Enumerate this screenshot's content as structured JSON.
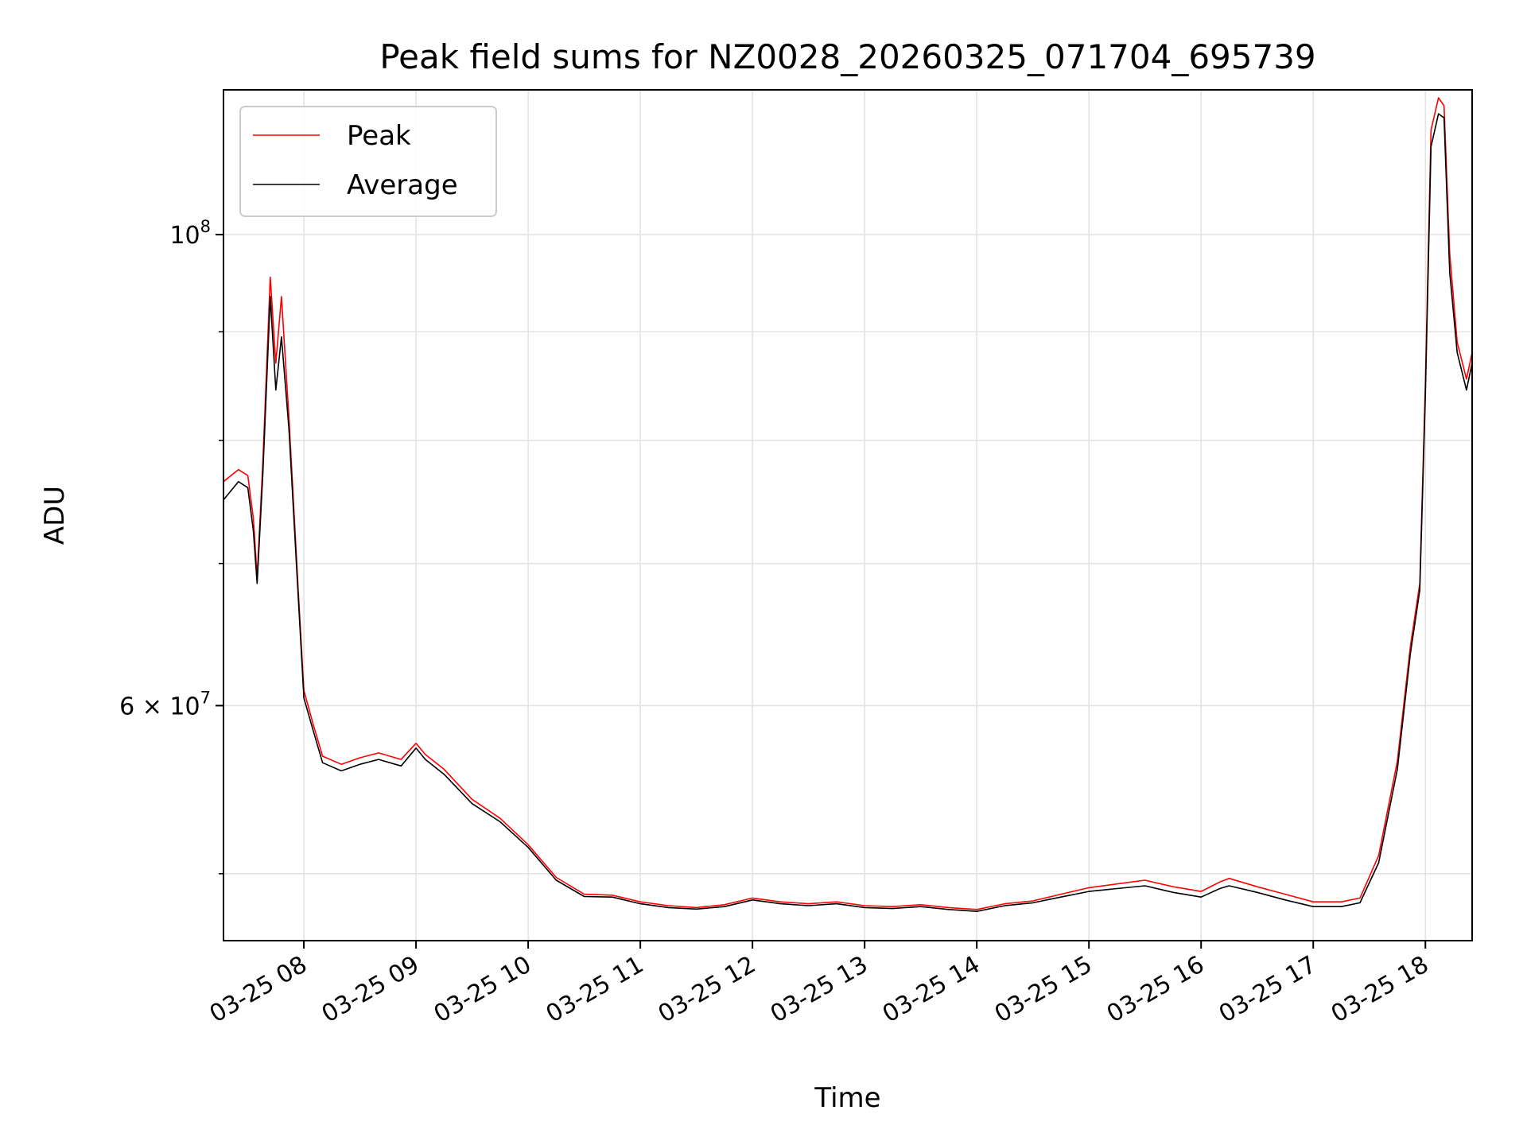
{
  "chart_data": {
    "type": "line",
    "title": "Peak field sums for NZ0028_20260325_071704_695739",
    "xlabel": "Time",
    "ylabel": "ADU",
    "xlim": [
      "03-25 07:17",
      "03-25 18:25"
    ],
    "yscale": "log",
    "ylim": [
      46500000,
      117000000
    ],
    "grid": true,
    "legend_position": "top-left",
    "x_tick_labels": [
      "03-25 08",
      "03-25 09",
      "03-25 10",
      "03-25 11",
      "03-25 12",
      "03-25 13",
      "03-25 14",
      "03-25 15",
      "03-25 16",
      "03-25 17",
      "03-25 18"
    ],
    "y_tick_labels": [
      {
        "value": 100000000,
        "mantissa": "",
        "base": "10",
        "exponent": "8"
      },
      {
        "value": 60000000,
        "mantissa": "6 × ",
        "base": "10",
        "exponent": "7"
      }
    ],
    "y_minor_ticks": [
      50000000,
      70000000,
      80000000,
      90000000
    ],
    "series": [
      {
        "name": "Peak",
        "color": "#ff0000",
        "points": [
          [
            "03-25 07:17",
            76500000
          ],
          [
            "03-25 07:25",
            77500000
          ],
          [
            "03-25 07:30",
            77000000
          ],
          [
            "03-25 07:33",
            73500000
          ],
          [
            "03-25 07:35",
            69000000
          ],
          [
            "03-25 07:38",
            78000000
          ],
          [
            "03-25 07:42",
            95500000
          ],
          [
            "03-25 07:45",
            87000000
          ],
          [
            "03-25 07:48",
            93500000
          ],
          [
            "03-25 07:52",
            82000000
          ],
          [
            "03-25 07:57",
            68000000
          ],
          [
            "03-25 08:00",
            61000000
          ],
          [
            "03-25 08:05",
            58800000
          ],
          [
            "03-25 08:10",
            56800000
          ],
          [
            "03-25 08:20",
            56300000
          ],
          [
            "03-25 08:30",
            56700000
          ],
          [
            "03-25 08:40",
            57000000
          ],
          [
            "03-25 08:52",
            56600000
          ],
          [
            "03-25 09:00",
            57600000
          ],
          [
            "03-25 09:05",
            56900000
          ],
          [
            "03-25 09:15",
            56000000
          ],
          [
            "03-25 09:30",
            54200000
          ],
          [
            "03-25 09:45",
            53100000
          ],
          [
            "03-25 10:00",
            51600000
          ],
          [
            "03-25 10:15",
            49800000
          ],
          [
            "03-25 10:30",
            48900000
          ],
          [
            "03-25 10:45",
            48850000
          ],
          [
            "03-25 11:00",
            48500000
          ],
          [
            "03-25 11:15",
            48300000
          ],
          [
            "03-25 11:30",
            48200000
          ],
          [
            "03-25 11:45",
            48350000
          ],
          [
            "03-25 12:00",
            48700000
          ],
          [
            "03-25 12:15",
            48500000
          ],
          [
            "03-25 12:30",
            48400000
          ],
          [
            "03-25 12:45",
            48500000
          ],
          [
            "03-25 13:00",
            48300000
          ],
          [
            "03-25 13:15",
            48250000
          ],
          [
            "03-25 13:30",
            48350000
          ],
          [
            "03-25 13:45",
            48200000
          ],
          [
            "03-25 14:00",
            48100000
          ],
          [
            "03-25 14:15",
            48400000
          ],
          [
            "03-25 14:30",
            48550000
          ],
          [
            "03-25 14:45",
            48900000
          ],
          [
            "03-25 15:00",
            49250000
          ],
          [
            "03-25 15:15",
            49450000
          ],
          [
            "03-25 15:30",
            49650000
          ],
          [
            "03-25 15:45",
            49300000
          ],
          [
            "03-25 16:00",
            49050000
          ],
          [
            "03-25 16:10",
            49550000
          ],
          [
            "03-25 16:15",
            49750000
          ],
          [
            "03-25 16:30",
            49300000
          ],
          [
            "03-25 16:45",
            48900000
          ],
          [
            "03-25 17:00",
            48500000
          ],
          [
            "03-25 17:15",
            48500000
          ],
          [
            "03-25 17:25",
            48700000
          ],
          [
            "03-25 17:35",
            51000000
          ],
          [
            "03-25 17:45",
            56500000
          ],
          [
            "03-25 17:52",
            64000000
          ],
          [
            "03-25 17:57",
            68500000
          ],
          [
            "03-25 18:00",
            85000000
          ],
          [
            "03-25 18:03",
            112000000
          ],
          [
            "03-25 18:07",
            116000000
          ],
          [
            "03-25 18:10",
            115000000
          ],
          [
            "03-25 18:13",
            98000000
          ],
          [
            "03-25 18:17",
            89000000
          ],
          [
            "03-25 18:22",
            85500000
          ],
          [
            "03-25 18:25",
            88000000
          ]
        ]
      },
      {
        "name": "Average",
        "color": "#000000",
        "points": [
          [
            "03-25 07:17",
            75000000
          ],
          [
            "03-25 07:25",
            76500000
          ],
          [
            "03-25 07:30",
            76000000
          ],
          [
            "03-25 07:33",
            72500000
          ],
          [
            "03-25 07:35",
            68500000
          ],
          [
            "03-25 07:38",
            77000000
          ],
          [
            "03-25 07:42",
            93500000
          ],
          [
            "03-25 07:45",
            84500000
          ],
          [
            "03-25 07:48",
            89500000
          ],
          [
            "03-25 07:52",
            81000000
          ],
          [
            "03-25 07:57",
            67500000
          ],
          [
            "03-25 08:00",
            60500000
          ],
          [
            "03-25 08:05",
            58400000
          ],
          [
            "03-25 08:10",
            56400000
          ],
          [
            "03-25 08:20",
            55900000
          ],
          [
            "03-25 08:30",
            56300000
          ],
          [
            "03-25 08:40",
            56600000
          ],
          [
            "03-25 08:52",
            56200000
          ],
          [
            "03-25 09:00",
            57300000
          ],
          [
            "03-25 09:05",
            56600000
          ],
          [
            "03-25 09:15",
            55700000
          ],
          [
            "03-25 09:30",
            53950000
          ],
          [
            "03-25 09:45",
            52900000
          ],
          [
            "03-25 10:00",
            51450000
          ],
          [
            "03-25 10:15",
            49650000
          ],
          [
            "03-25 10:30",
            48780000
          ],
          [
            "03-25 10:45",
            48750000
          ],
          [
            "03-25 11:00",
            48400000
          ],
          [
            "03-25 11:15",
            48200000
          ],
          [
            "03-25 11:30",
            48120000
          ],
          [
            "03-25 11:45",
            48250000
          ],
          [
            "03-25 12:00",
            48600000
          ],
          [
            "03-25 12:15",
            48400000
          ],
          [
            "03-25 12:30",
            48300000
          ],
          [
            "03-25 12:45",
            48400000
          ],
          [
            "03-25 13:00",
            48200000
          ],
          [
            "03-25 13:15",
            48150000
          ],
          [
            "03-25 13:30",
            48250000
          ],
          [
            "03-25 13:45",
            48100000
          ],
          [
            "03-25 14:00",
            48000000
          ],
          [
            "03-25 14:15",
            48300000
          ],
          [
            "03-25 14:30",
            48450000
          ],
          [
            "03-25 14:45",
            48750000
          ],
          [
            "03-25 15:00",
            49050000
          ],
          [
            "03-25 15:15",
            49200000
          ],
          [
            "03-25 15:30",
            49350000
          ],
          [
            "03-25 15:45",
            49000000
          ],
          [
            "03-25 16:00",
            48750000
          ],
          [
            "03-25 16:10",
            49200000
          ],
          [
            "03-25 16:15",
            49350000
          ],
          [
            "03-25 16:30",
            49000000
          ],
          [
            "03-25 16:45",
            48600000
          ],
          [
            "03-25 17:00",
            48250000
          ],
          [
            "03-25 17:15",
            48250000
          ],
          [
            "03-25 17:25",
            48450000
          ],
          [
            "03-25 17:35",
            50600000
          ],
          [
            "03-25 17:45",
            56000000
          ],
          [
            "03-25 17:52",
            63500000
          ],
          [
            "03-25 17:57",
            68000000
          ],
          [
            "03-25 18:00",
            84000000
          ],
          [
            "03-25 18:03",
            110000000
          ],
          [
            "03-25 18:07",
            114000000
          ],
          [
            "03-25 18:10",
            113500000
          ],
          [
            "03-25 18:13",
            96000000
          ],
          [
            "03-25 18:17",
            88000000
          ],
          [
            "03-25 18:22",
            84500000
          ],
          [
            "03-25 18:25",
            87000000
          ]
        ]
      }
    ]
  }
}
